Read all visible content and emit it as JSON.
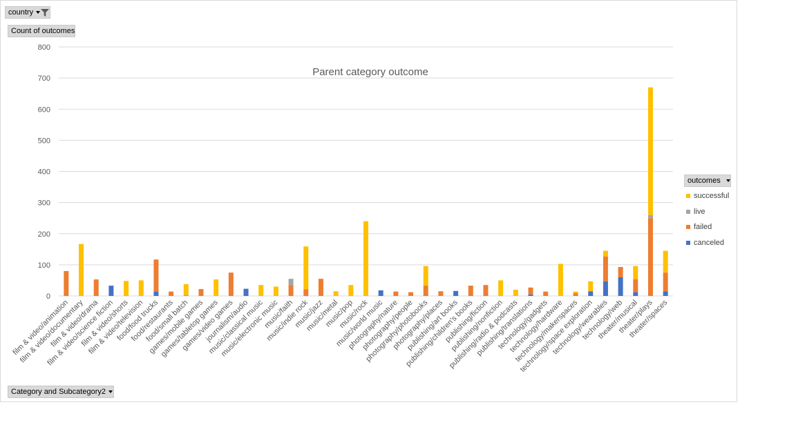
{
  "filters": {
    "country_label": "country",
    "y_field_label": "Count of outcomes",
    "x_field_label": "Category and Subcategory2",
    "legend_field_label": "outcomes"
  },
  "colors": {
    "successful": "#ffc000",
    "live": "#a5a5a5",
    "failed": "#ed7d31",
    "canceled": "#4472c4",
    "gridline": "#d9d9d9",
    "text": "#595959"
  },
  "chart_data": {
    "type": "bar",
    "stacked": true,
    "title": "Parent  category outcome",
    "ylabel": "",
    "xlabel": "",
    "ylim": [
      0,
      800
    ],
    "yticks": [
      0,
      100,
      200,
      300,
      400,
      500,
      600,
      700,
      800
    ],
    "grid": true,
    "legend_position": "right",
    "categories": [
      "film & video/animation",
      "film & video/documentary",
      "film & video/drama",
      "film & video/science fiction",
      "film & video/shorts",
      "film & video/television",
      "food/food trucks",
      "food/restaurants",
      "food/small batch",
      "games/mobile games",
      "games/tabletop games",
      "games/video games",
      "journalism/audio",
      "music/classical music",
      "music/electronic music",
      "music/faith",
      "music/indie rock",
      "music/jazz",
      "music/metal",
      "music/pop",
      "music/rock",
      "music/world music",
      "photography/nature",
      "photography/people",
      "photography/photobooks",
      "photography/places",
      "publishing/art books",
      "publishing/children's books",
      "publishing/fiction",
      "publishing/nonfiction",
      "publishing/radio & podcasts",
      "publishing/translations",
      "technology/gadgets",
      "technology/hardware",
      "technology/makerspaces",
      "technology/space exploration",
      "technology/wearables",
      "technology/web",
      "theater/musical",
      "theater/plays",
      "theater/spaces"
    ],
    "series": [
      {
        "name": "canceled",
        "values": [
          0,
          0,
          0,
          33,
          0,
          0,
          14,
          0,
          0,
          0,
          0,
          0,
          23,
          0,
          0,
          0,
          0,
          0,
          0,
          0,
          0,
          18,
          0,
          0,
          0,
          0,
          16,
          0,
          0,
          0,
          0,
          5,
          0,
          0,
          0,
          15,
          47,
          60,
          12,
          0,
          15
        ]
      },
      {
        "name": "failed",
        "values": [
          80,
          0,
          53,
          0,
          0,
          0,
          103,
          14,
          0,
          22,
          0,
          75,
          0,
          0,
          0,
          35,
          21,
          55,
          0,
          0,
          0,
          0,
          14,
          12,
          33,
          15,
          0,
          33,
          35,
          0,
          0,
          22,
          14,
          0,
          9,
          0,
          80,
          33,
          42,
          250,
          60
        ]
      },
      {
        "name": "live",
        "values": [
          0,
          0,
          0,
          0,
          0,
          0,
          0,
          0,
          3,
          0,
          0,
          0,
          0,
          0,
          0,
          20,
          0,
          0,
          0,
          0,
          0,
          0,
          0,
          0,
          0,
          0,
          0,
          0,
          0,
          0,
          0,
          0,
          0,
          0,
          0,
          0,
          0,
          0,
          0,
          10,
          0
        ]
      },
      {
        "name": "successful",
        "values": [
          0,
          167,
          0,
          0,
          48,
          50,
          0,
          0,
          35,
          0,
          53,
          0,
          0,
          35,
          30,
          0,
          138,
          0,
          15,
          35,
          240,
          0,
          0,
          0,
          63,
          0,
          0,
          0,
          0,
          50,
          20,
          0,
          0,
          103,
          5,
          32,
          18,
          0,
          42,
          410,
          70
        ]
      }
    ]
  }
}
